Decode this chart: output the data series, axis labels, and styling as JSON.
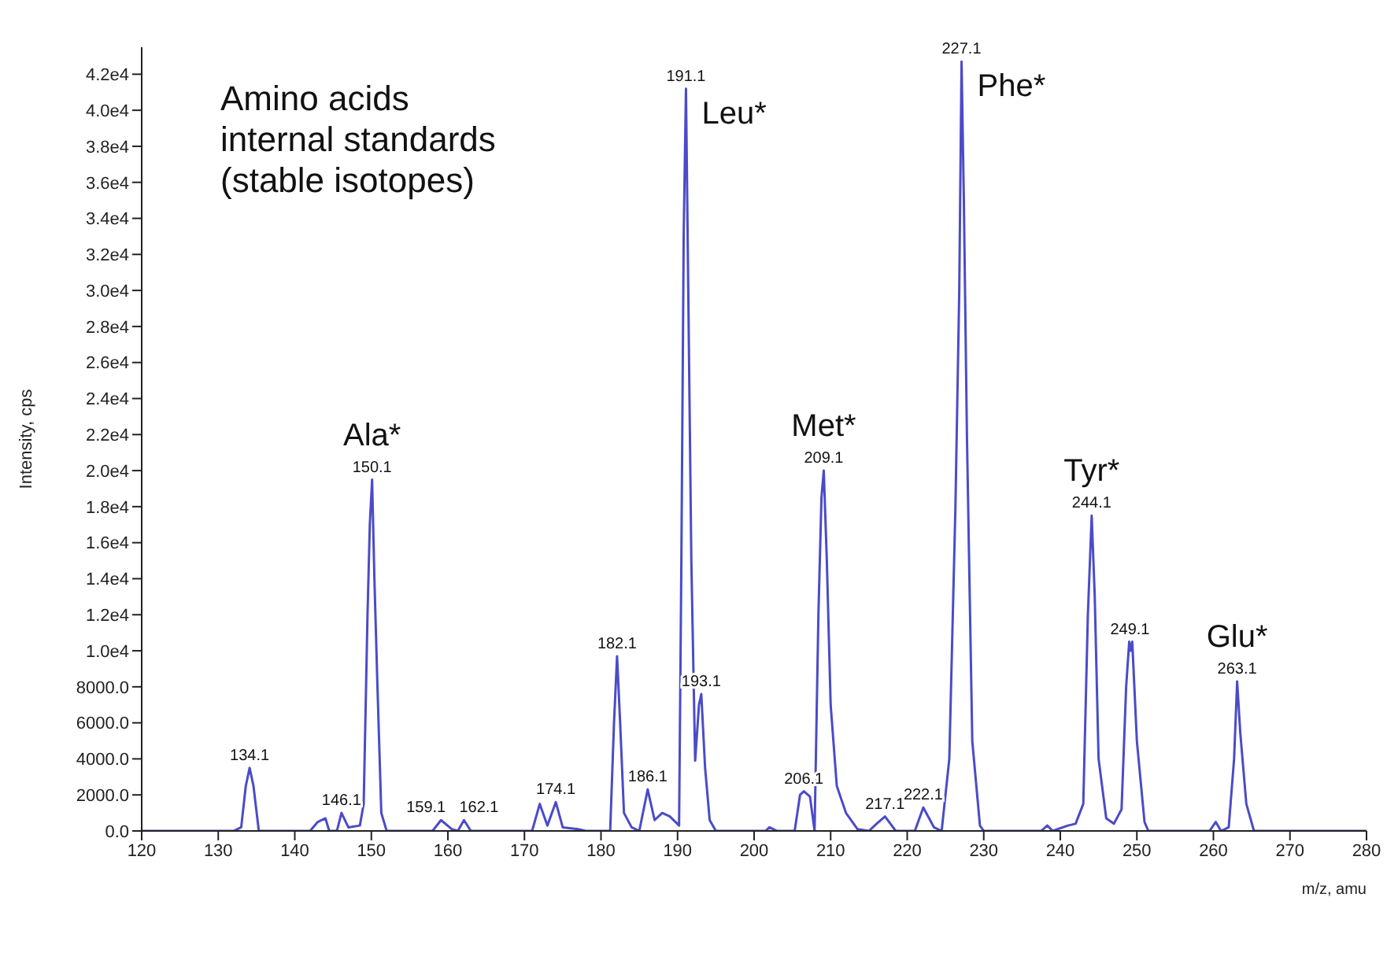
{
  "chart_data": {
    "type": "line",
    "xlabel": "m/z, amu",
    "ylabel": "Intensity, cps",
    "x": [
      120,
      132,
      133,
      133.6,
      134.1,
      134.6,
      135.3,
      142,
      143,
      144,
      144.5,
      145.5,
      146.1,
      147,
      148.5,
      149,
      149.5,
      149.8,
      150.1,
      150.4,
      150.8,
      151.3,
      152,
      158,
      159.1,
      160.5,
      161.3,
      162.1,
      163,
      171,
      172,
      173,
      174.1,
      175,
      177,
      178,
      181.2,
      181.7,
      182.1,
      182.5,
      183,
      184,
      185,
      186.1,
      187,
      188,
      189,
      190.2,
      190.5,
      190.8,
      191.1,
      191.4,
      191.8,
      192.3,
      192.8,
      193.1,
      193.6,
      194.2,
      195,
      201.5,
      202,
      203,
      205.3,
      206,
      206.5,
      207.3,
      207.9,
      208.4,
      208.8,
      209.1,
      209.5,
      210,
      210.8,
      212,
      213.5,
      215,
      216,
      217.1,
      218.5,
      221,
      222.1,
      223.5,
      224.5,
      225.5,
      226.3,
      226.8,
      227.1,
      227.4,
      227.8,
      228.5,
      229.5,
      230,
      237.5,
      238.3,
      239,
      241,
      242,
      243,
      243.6,
      244.1,
      244.5,
      245,
      246,
      247,
      248,
      248.6,
      249,
      249.2,
      249.4,
      250,
      251,
      251.5,
      259.5,
      260.3,
      261,
      262,
      262.7,
      263.1,
      263.5,
      264.3,
      265.3,
      280
    ],
    "series": [
      {
        "color": "#4b4bc8",
        "values": [
          0,
          0,
          200,
          2500,
          3500,
          2500,
          0,
          0,
          500,
          700,
          0,
          0,
          1000,
          200,
          300,
          1500,
          12000,
          17000,
          19500,
          14000,
          8000,
          1000,
          0,
          0,
          600,
          100,
          0,
          600,
          0,
          0,
          1500,
          300,
          1600,
          200,
          100,
          0,
          0,
          6000,
          9700,
          6000,
          1000,
          200,
          0,
          2300,
          600,
          1000,
          800,
          300,
          15000,
          33000,
          41200,
          30000,
          15000,
          3900,
          7000,
          7600,
          3500,
          600,
          0,
          0,
          200,
          0,
          0,
          2000,
          2200,
          1900,
          0,
          12000,
          18500,
          20000,
          15000,
          7000,
          2500,
          1000,
          100,
          0,
          400,
          800,
          0,
          0,
          1300,
          200,
          0,
          4000,
          18000,
          30000,
          42700,
          35000,
          22000,
          5000,
          300,
          0,
          0,
          300,
          0,
          300,
          400,
          1500,
          12000,
          17500,
          13000,
          4000,
          700,
          400,
          1200,
          8000,
          10500,
          10000,
          10500,
          5000,
          500,
          0,
          0,
          500,
          0,
          200,
          4000,
          8300,
          5500,
          1500,
          0,
          0
        ]
      }
    ],
    "xlim": [
      120,
      280
    ],
    "xticks": [
      120,
      130,
      140,
      150,
      160,
      170,
      180,
      190,
      200,
      210,
      220,
      230,
      240,
      250,
      260,
      270,
      280
    ],
    "ylim": [
      0,
      43500
    ],
    "yticks": [
      {
        "value": 0,
        "label": "0.0"
      },
      {
        "value": 2000,
        "label": "2000.0"
      },
      {
        "value": 4000,
        "label": "4000.0"
      },
      {
        "value": 6000,
        "label": "6000.0"
      },
      {
        "value": 8000,
        "label": "8000.0"
      },
      {
        "value": 10000,
        "label": "1.0e4"
      },
      {
        "value": 12000,
        "label": "1.2e4"
      },
      {
        "value": 14000,
        "label": "1.4e4"
      },
      {
        "value": 16000,
        "label": "1.6e4"
      },
      {
        "value": 18000,
        "label": "1.8e4"
      },
      {
        "value": 20000,
        "label": "2.0e4"
      },
      {
        "value": 22000,
        "label": "2.2e4"
      },
      {
        "value": 24000,
        "label": "2.4e4"
      },
      {
        "value": 26000,
        "label": "2.6e4"
      },
      {
        "value": 28000,
        "label": "2.8e4"
      },
      {
        "value": 30000,
        "label": "3.0e4"
      },
      {
        "value": 32000,
        "label": "3.2e4"
      },
      {
        "value": 34000,
        "label": "3.4e4"
      },
      {
        "value": 36000,
        "label": "3.6e4"
      },
      {
        "value": 38000,
        "label": "3.8e4"
      },
      {
        "value": 40000,
        "label": "4.0e4"
      },
      {
        "value": 42000,
        "label": "4.2e4"
      }
    ],
    "grid": false,
    "marker": "none",
    "line_style": "solid",
    "legend": false,
    "annotations": [
      "Amino acids\ninternal standards\n(stable isotopes)",
      {
        "text": "134.1",
        "x": 134.1,
        "y": 3500
      },
      {
        "text": "146.1",
        "x": 146.1,
        "y": 1000
      },
      {
        "text": "150.1",
        "x": 150.1,
        "y": 19500
      },
      {
        "text": "Ala*",
        "x": 150.1,
        "y": 19500
      },
      {
        "text": "159.1",
        "x": 159.1,
        "y": 600
      },
      {
        "text": "162.1",
        "x": 162.1,
        "y": 600
      },
      {
        "text": "174.1",
        "x": 174.1,
        "y": 1600
      },
      {
        "text": "182.1",
        "x": 182.1,
        "y": 9700
      },
      {
        "text": "186.1",
        "x": 186.1,
        "y": 2300
      },
      {
        "text": "191.1",
        "x": 191.1,
        "y": 41200
      },
      {
        "text": "Leu*",
        "x": 191.1,
        "y": 41200
      },
      {
        "text": "193.1",
        "x": 193.1,
        "y": 7600
      },
      {
        "text": "206.1",
        "x": 206.5,
        "y": 2200
      },
      {
        "text": "209.1",
        "x": 209.1,
        "y": 20000
      },
      {
        "text": "Met*",
        "x": 209.1,
        "y": 20000
      },
      {
        "text": "217.1",
        "x": 217.1,
        "y": 800
      },
      {
        "text": "222.1",
        "x": 222.1,
        "y": 1300
      },
      {
        "text": "227.1",
        "x": 227.1,
        "y": 42700
      },
      {
        "text": "Phe*",
        "x": 227.1,
        "y": 42700
      },
      {
        "text": "244.1",
        "x": 244.1,
        "y": 17500
      },
      {
        "text": "Tyr*",
        "x": 244.1,
        "y": 17500
      },
      {
        "text": "249.1",
        "x": 249.1,
        "y": 10500
      },
      {
        "text": "263.1",
        "x": 263.1,
        "y": 8300
      },
      {
        "text": "Glu*",
        "x": 263.1,
        "y": 8300
      }
    ]
  }
}
